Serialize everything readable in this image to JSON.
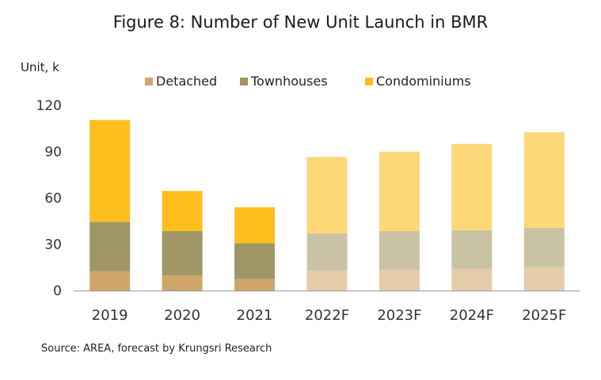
{
  "source_note": "Source: AREA, forecast by Krungsri Research",
  "colors": {
    "detached": "#CFA56A",
    "townhouses": "#A09666",
    "condominiums": "#FCBF1E",
    "detached_forecast": "#E5CDA9",
    "townhouses_forecast": "#C9C2A5",
    "condominiums_forecast": "#FDD878",
    "axis": "#999999",
    "text": "#333333"
  },
  "chart_data": {
    "type": "bar",
    "stacked": true,
    "title": "Figure 8: Number of New Unit Launch in BMR",
    "ylabel": "Unit, k",
    "xlabel": "",
    "categories": [
      "2019",
      "2020",
      "2021",
      "2022F",
      "2023F",
      "2024F",
      "2025F"
    ],
    "forecast_from_index": 3,
    "ylim": [
      0,
      120
    ],
    "yticks": [
      0,
      30,
      60,
      90,
      120
    ],
    "grid": false,
    "legend_position": "top",
    "series": [
      {
        "name": "Detached",
        "values": [
          12.5,
          10,
          7.5,
          13,
          13.5,
          14,
          15
        ]
      },
      {
        "name": "Townhouses",
        "values": [
          32,
          28.5,
          23,
          24,
          25,
          25,
          25.5
        ]
      },
      {
        "name": "Condominiums",
        "values": [
          66,
          26,
          23.5,
          49.5,
          51.5,
          56,
          62
        ]
      }
    ]
  }
}
